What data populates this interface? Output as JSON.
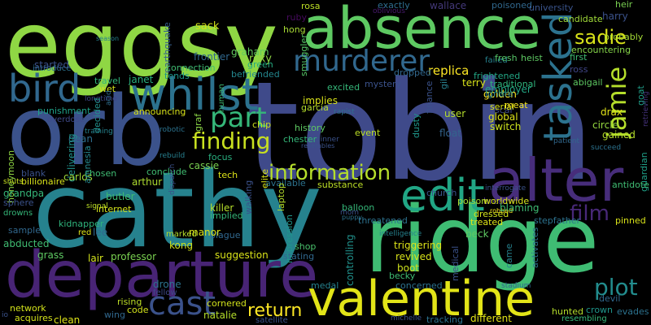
{
  "background": "#000000",
  "words": [
    {
      "text": "tobin",
      "color": "#3f4a8a"
    },
    {
      "text": "cathy",
      "color": "#26828e"
    },
    {
      "text": "eggsy",
      "color": "#8fd744"
    },
    {
      "text": "ridge",
      "color": "#3fbc73"
    },
    {
      "text": "orb",
      "color": "#3b528b"
    },
    {
      "text": "absence",
      "color": "#5ec962"
    },
    {
      "text": "departure",
      "color": "#482475"
    },
    {
      "text": "valentine",
      "color": "#e2e418"
    },
    {
      "text": "alter",
      "color": "#472d7b"
    },
    {
      "text": "whilst",
      "color": "#2c728e"
    },
    {
      "text": "bird",
      "color": "#31688e"
    },
    {
      "text": "edit",
      "color": "#21a685"
    },
    {
      "text": "tasked",
      "color": "#2c728e"
    },
    {
      "text": "murderer",
      "color": "#31688e"
    },
    {
      "text": "cast",
      "color": "#3b528b"
    },
    {
      "text": "finding",
      "color": "#c8e020"
    },
    {
      "text": "information",
      "color": "#b5de2b"
    },
    {
      "text": "jamie",
      "color": "#b5de2b"
    },
    {
      "text": "part",
      "color": "#35b779"
    },
    {
      "text": "film",
      "color": "#482878"
    },
    {
      "text": "plot",
      "color": "#228c8d"
    },
    {
      "text": "sadie",
      "color": "#d8e219"
    },
    {
      "text": "return",
      "color": "#fde725"
    },
    {
      "text": "harry",
      "color": "#3b528b"
    },
    {
      "text": "heir",
      "color": "#7ad151"
    },
    {
      "text": "wallace",
      "color": "#44397a"
    },
    {
      "text": "exactly",
      "color": "#2e6d8e"
    },
    {
      "text": "poisoned",
      "color": "#31688e"
    },
    {
      "text": "university",
      "color": "#3a548c"
    },
    {
      "text": "candidate",
      "color": "#a0da39"
    },
    {
      "text": "probably",
      "color": "#a5db36"
    },
    {
      "text": "encountering",
      "color": "#86d549"
    },
    {
      "text": "oblivious",
      "color": "#481a6c"
    },
    {
      "text": "rosa",
      "color": "#bddf26"
    },
    {
      "text": "ruby",
      "color": "#460b5e"
    },
    {
      "text": "earthquake",
      "color": "#355f8d"
    },
    {
      "text": "sack",
      "color": "#d2e21b"
    },
    {
      "text": "season",
      "color": "#26818e"
    },
    {
      "text": "hong",
      "color": "#a8db34"
    },
    {
      "text": "roxy",
      "color": "#8fd744"
    },
    {
      "text": "smuggler",
      "color": "#56c667"
    },
    {
      "text": "frontier",
      "color": "#31688e"
    },
    {
      "text": "connection",
      "color": "#3fbc73"
    },
    {
      "text": "graham",
      "color": "#63cb5f"
    },
    {
      "text": "green",
      "color": "#25ac82"
    },
    {
      "text": "replica",
      "color": "#fde725"
    },
    {
      "text": "failed",
      "color": "#26828e"
    },
    {
      "text": "terry",
      "color": "#d8e219"
    },
    {
      "text": "employer",
      "color": "#22a785"
    },
    {
      "text": "fresh",
      "color": "#56c667"
    },
    {
      "text": "heist",
      "color": "#5ec962"
    },
    {
      "text": "first",
      "color": "#3fbc73"
    },
    {
      "text": "ross",
      "color": "#404688"
    },
    {
      "text": "introduce",
      "color": "#2c728e"
    },
    {
      "text": "started",
      "color": "#3b528b"
    },
    {
      "text": "wet",
      "color": "#d2e21b"
    },
    {
      "text": "travel",
      "color": "#32b67a"
    },
    {
      "text": "janet",
      "color": "#29af7f"
    },
    {
      "text": "tends",
      "color": "#1f968b"
    },
    {
      "text": "befriended",
      "color": "#24878e"
    },
    {
      "text": "implies",
      "color": "#d8e219"
    },
    {
      "text": "excited",
      "color": "#35b779"
    },
    {
      "text": "mystery",
      "color": "#3b528b"
    },
    {
      "text": "dropped",
      "color": "#31688e"
    },
    {
      "text": "gil",
      "color": "#277f8e"
    },
    {
      "text": "frightened",
      "color": "#22a785"
    },
    {
      "text": "traditional",
      "color": "#2fb47c"
    },
    {
      "text": "golden",
      "color": "#fde725"
    },
    {
      "text": "abigail",
      "color": "#5ec962"
    },
    {
      "text": "goat",
      "color": "#1f9e89"
    },
    {
      "text": "red",
      "color": "#dde318"
    },
    {
      "text": "longtime",
      "color": "#3f4788"
    },
    {
      "text": "acid",
      "color": "#2e6e8e"
    },
    {
      "text": "punishment",
      "color": "#1fa188"
    },
    {
      "text": "overdose",
      "color": "#3f4a8a"
    },
    {
      "text": "dean",
      "color": "#2e6e8e"
    },
    {
      "text": "decided",
      "color": "#21918c"
    },
    {
      "text": "announcing",
      "color": "#d8e219"
    },
    {
      "text": "human",
      "color": "#3fbc73"
    },
    {
      "text": "rapist",
      "color": "#2d708e"
    },
    {
      "text": "chip",
      "color": "#cde11d"
    },
    {
      "text": "history",
      "color": "#5ec962"
    },
    {
      "text": "chester",
      "color": "#35b779"
    },
    {
      "text": "garcia",
      "color": "#b5de2b"
    },
    {
      "text": "event",
      "color": "#bddf26"
    },
    {
      "text": "dusty",
      "color": "#1f978b"
    },
    {
      "text": "finance",
      "color": "#3b528b"
    },
    {
      "text": "user",
      "color": "#b5de2b"
    },
    {
      "text": "scar",
      "color": "#3e4989"
    },
    {
      "text": "serial",
      "color": "#d8e219"
    },
    {
      "text": "global",
      "color": "#dde318"
    },
    {
      "text": "switch",
      "color": "#cde11d"
    },
    {
      "text": "ignore",
      "color": "#26828e"
    },
    {
      "text": "meat",
      "color": "#f6e620"
    },
    {
      "text": "retrieving",
      "color": "#46337e"
    },
    {
      "text": "drax",
      "color": "#e2e418"
    },
    {
      "text": "circle",
      "color": "#95d840"
    },
    {
      "text": "gained",
      "color": "#b5de2b"
    },
    {
      "text": "patient",
      "color": "#31688e"
    },
    {
      "text": "succeed",
      "color": "#2c728e"
    },
    {
      "text": "guardian",
      "color": "#1fa088"
    },
    {
      "text": "antidote",
      "color": "#3fbc73"
    },
    {
      "text": "honeymoon",
      "color": "#90d743"
    },
    {
      "text": "training",
      "color": "#26828e"
    },
    {
      "text": "robotic",
      "color": "#2c728e"
    },
    {
      "text": "graf",
      "color": "#8bd646"
    },
    {
      "text": "float",
      "color": "#33638d"
    },
    {
      "text": "dinner",
      "color": "#3b528b"
    },
    {
      "text": "resembles",
      "color": "#3b528b"
    },
    {
      "text": "church",
      "color": "#3a548c"
    },
    {
      "text": "breach",
      "color": "#46327e"
    },
    {
      "text": "interrogate",
      "color": "#3b528b"
    },
    {
      "text": "robbed",
      "color": "#fde725"
    },
    {
      "text": "delivering",
      "color": "#21918c"
    },
    {
      "text": "chosen",
      "color": "#3fbc73"
    },
    {
      "text": "cassie",
      "color": "#7ad151"
    },
    {
      "text": "focus",
      "color": "#29af7f"
    },
    {
      "text": "tech",
      "color": "#dde318"
    },
    {
      "text": "elite",
      "color": "#d8e219"
    },
    {
      "text": "rebuild",
      "color": "#277f8e"
    },
    {
      "text": "conclude",
      "color": "#40bd72"
    },
    {
      "text": "available",
      "color": "#2c728e"
    },
    {
      "text": "substance",
      "color": "#bddf26"
    },
    {
      "text": "walking",
      "color": "#3b528b"
    },
    {
      "text": "billionaire",
      "color": "#d8e219"
    },
    {
      "text": "blank",
      "color": "#3b528b"
    },
    {
      "text": "carlos",
      "color": "#a0da39"
    },
    {
      "text": "butler",
      "color": "#3fbc73"
    },
    {
      "text": "arthur",
      "color": "#addc30"
    },
    {
      "text": "shuts",
      "color": "#c8e020"
    },
    {
      "text": "amnesia",
      "color": "#24878e"
    },
    {
      "text": "signal",
      "color": "#bddf26"
    },
    {
      "text": "dispatch",
      "color": "#3b528b"
    },
    {
      "text": "grandpa",
      "color": "#35b779"
    },
    {
      "text": "sphere",
      "color": "#3b528b"
    },
    {
      "text": "killer",
      "color": "#b5de2b"
    },
    {
      "text": "implied",
      "color": "#35b779"
    },
    {
      "text": "laptop",
      "color": "#b5de2b"
    },
    {
      "text": "mom",
      "color": "#3b528b"
    },
    {
      "text": "puppy",
      "color": "#2c728e"
    },
    {
      "text": "poison",
      "color": "#a8db34"
    },
    {
      "text": "worldwide",
      "color": "#d8e219"
    },
    {
      "text": "balloon",
      "color": "#35b779"
    },
    {
      "text": "dressed",
      "color": "#d2e21b"
    },
    {
      "text": "blaming",
      "color": "#3fbc73"
    },
    {
      "text": "drowns",
      "color": "#35b779"
    },
    {
      "text": "internet",
      "color": "#d2e21b"
    },
    {
      "text": "threatened",
      "color": "#2c728e"
    },
    {
      "text": "treated",
      "color": "#dde318"
    },
    {
      "text": "stepfather",
      "color": "#2c728e"
    },
    {
      "text": "pinned",
      "color": "#d8e219"
    },
    {
      "text": "kidnapper",
      "color": "#2fb47c"
    },
    {
      "text": "sample",
      "color": "#31688e"
    },
    {
      "text": "lee",
      "color": "#31688e"
    },
    {
      "text": "marked",
      "color": "#b5de2b"
    },
    {
      "text": "plague",
      "color": "#31688e"
    },
    {
      "text": "impression",
      "color": "#1f968b"
    },
    {
      "text": "shop",
      "color": "#4ac16d"
    },
    {
      "text": "intelligence",
      "color": "#26828e"
    },
    {
      "text": "beck",
      "color": "#5ec962"
    },
    {
      "text": "abducted",
      "color": "#40bd72"
    },
    {
      "text": "kong",
      "color": "#cde11d"
    },
    {
      "text": "manor",
      "color": "#d8e219"
    },
    {
      "text": "suggestion",
      "color": "#d8e219"
    },
    {
      "text": "triggering",
      "color": "#dde318"
    },
    {
      "text": "grass",
      "color": "#5ec962"
    },
    {
      "text": "lair",
      "color": "#d2e21b"
    },
    {
      "text": "professor",
      "color": "#7ad151"
    },
    {
      "text": "stating",
      "color": "#31688e"
    },
    {
      "text": "controlling",
      "color": "#21918c"
    },
    {
      "text": "revived",
      "color": "#d8e219"
    },
    {
      "text": "boot",
      "color": "#cde11d"
    },
    {
      "text": "becky",
      "color": "#3fbc73"
    },
    {
      "text": "medical",
      "color": "#3b528b"
    },
    {
      "text": "came",
      "color": "#26828e"
    },
    {
      "text": "activates",
      "color": "#2c728e"
    },
    {
      "text": "drone",
      "color": "#2c728e"
    },
    {
      "text": "fellow",
      "color": "#3e4989"
    },
    {
      "text": "stadium",
      "color": "#31688e"
    },
    {
      "text": "medal",
      "color": "#26828e"
    },
    {
      "text": "concerned",
      "color": "#2c728e"
    },
    {
      "text": "network",
      "color": "#d2e21b"
    },
    {
      "text": "rising",
      "color": "#bddf26"
    },
    {
      "text": "cornered",
      "color": "#d2e21b"
    },
    {
      "text": "hunted",
      "color": "#b5de2b"
    },
    {
      "text": "crown",
      "color": "#1f968b"
    },
    {
      "text": "devil",
      "color": "#31688e"
    },
    {
      "text": "evades",
      "color": "#2c728e"
    },
    {
      "text": "acquires",
      "color": "#d2e21b"
    },
    {
      "text": "wing",
      "color": "#31688e"
    },
    {
      "text": "code",
      "color": "#d2e21b"
    },
    {
      "text": "natalie",
      "color": "#b5de2b"
    },
    {
      "text": "clean",
      "color": "#dde318"
    },
    {
      "text": "satellite",
      "color": "#3b528b"
    },
    {
      "text": "michelle",
      "color": "#3b528b"
    },
    {
      "text": "tracking",
      "color": "#2c728e"
    },
    {
      "text": "different",
      "color": "#e2e418"
    },
    {
      "text": "resembling",
      "color": "#35b779"
    },
    {
      "text": "io",
      "color": "#3b528b"
    }
  ]
}
